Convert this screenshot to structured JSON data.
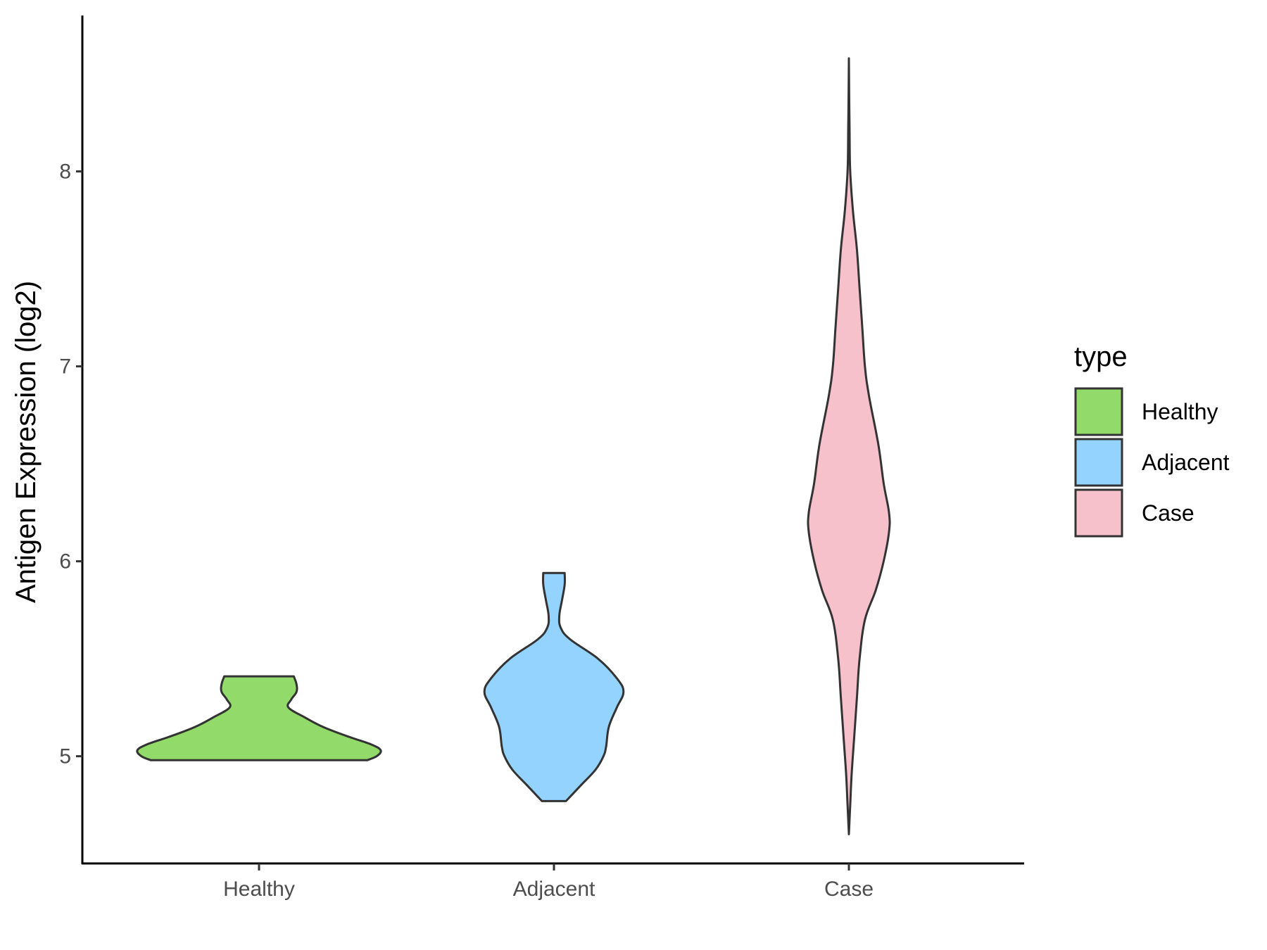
{
  "chart_data": {
    "type": "violin",
    "title": "",
    "xlabel": "",
    "ylabel": "Antigen Expression (log2)",
    "ylim": [
      4.45,
      8.8
    ],
    "yticks": [
      5,
      6,
      7,
      8
    ],
    "categories": [
      "Healthy",
      "Adjacent",
      "Case"
    ],
    "legend": {
      "title": "type",
      "position": "right",
      "entries": [
        {
          "label": "Healthy",
          "color": "#92DA6A"
        },
        {
          "label": "Adjacent",
          "color": "#93D3FE"
        },
        {
          "label": "Case",
          "color": "#F7C1CC"
        }
      ]
    },
    "grid": false,
    "series": [
      {
        "category": "Healthy",
        "color": "#92DA6A",
        "min": 4.98,
        "max": 5.41,
        "density_profile": [
          [
            4.98,
            0.81
          ],
          [
            5.0,
            0.88
          ],
          [
            5.03,
            0.91
          ],
          [
            5.06,
            0.84
          ],
          [
            5.1,
            0.67
          ],
          [
            5.15,
            0.48
          ],
          [
            5.2,
            0.34
          ],
          [
            5.25,
            0.22
          ],
          [
            5.29,
            0.24
          ],
          [
            5.33,
            0.28
          ],
          [
            5.37,
            0.28
          ],
          [
            5.41,
            0.26
          ]
        ]
      },
      {
        "category": "Adjacent",
        "color": "#93D3FE",
        "min": 4.77,
        "max": 5.94,
        "density_profile": [
          [
            4.77,
            0.09
          ],
          [
            4.85,
            0.2
          ],
          [
            4.93,
            0.31
          ],
          [
            5.0,
            0.37
          ],
          [
            5.05,
            0.39
          ],
          [
            5.15,
            0.41
          ],
          [
            5.25,
            0.47
          ],
          [
            5.33,
            0.52
          ],
          [
            5.4,
            0.47
          ],
          [
            5.5,
            0.33
          ],
          [
            5.6,
            0.12
          ],
          [
            5.66,
            0.05
          ],
          [
            5.72,
            0.04
          ],
          [
            5.8,
            0.06
          ],
          [
            5.88,
            0.08
          ],
          [
            5.94,
            0.08
          ]
        ]
      },
      {
        "category": "Case",
        "color": "#F7C1CC",
        "min": 4.6,
        "max": 8.58,
        "density_profile": [
          [
            4.6,
            0.0
          ],
          [
            4.75,
            0.01
          ],
          [
            4.9,
            0.02
          ],
          [
            5.1,
            0.04
          ],
          [
            5.3,
            0.06
          ],
          [
            5.5,
            0.08
          ],
          [
            5.7,
            0.12
          ],
          [
            5.85,
            0.2
          ],
          [
            6.0,
            0.26
          ],
          [
            6.15,
            0.3
          ],
          [
            6.25,
            0.3
          ],
          [
            6.4,
            0.26
          ],
          [
            6.6,
            0.22
          ],
          [
            6.85,
            0.15
          ],
          [
            7.0,
            0.12
          ],
          [
            7.2,
            0.1
          ],
          [
            7.4,
            0.08
          ],
          [
            7.6,
            0.06
          ],
          [
            7.8,
            0.03
          ],
          [
            8.0,
            0.01
          ],
          [
            8.2,
            0.005
          ],
          [
            8.4,
            0.002
          ],
          [
            8.58,
            0.0
          ]
        ]
      }
    ]
  }
}
